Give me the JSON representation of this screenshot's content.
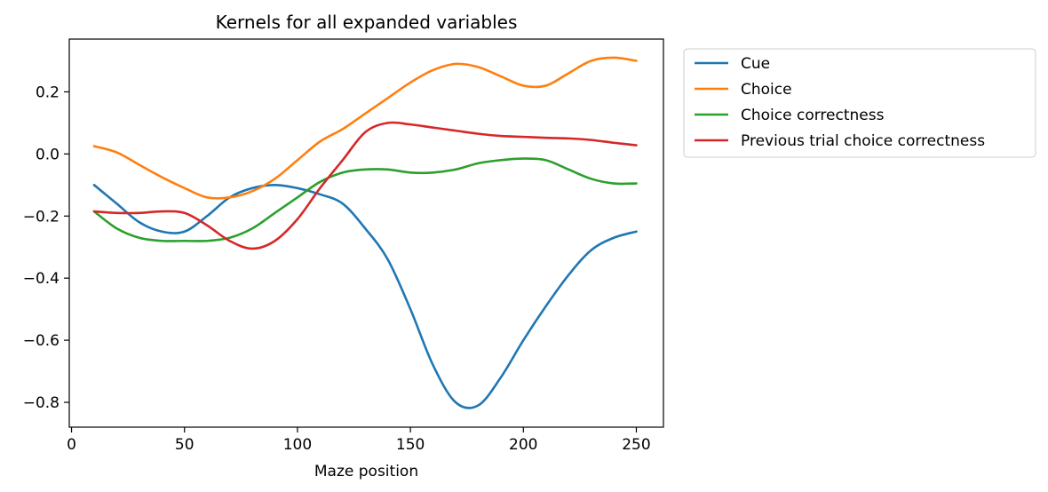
{
  "chart_data": {
    "type": "line",
    "title": "Kernels for all expanded variables",
    "xlabel": "Maze position",
    "ylabel": "",
    "xlim": [
      -1,
      262
    ],
    "ylim": [
      -0.88,
      0.37
    ],
    "xticks": [
      0,
      50,
      100,
      150,
      200,
      250
    ],
    "yticks": [
      0.2,
      0.0,
      -0.2,
      -0.4,
      -0.6,
      -0.8
    ],
    "ytick_labels": [
      "0.2",
      "0.0",
      "−0.2",
      "−0.4",
      "−0.6",
      "−0.8"
    ],
    "grid": false,
    "legend_position": "outside-top-right",
    "x": [
      10,
      20,
      30,
      40,
      50,
      60,
      70,
      80,
      90,
      100,
      110,
      120,
      130,
      140,
      150,
      160,
      170,
      180,
      190,
      200,
      210,
      220,
      230,
      240,
      250
    ],
    "series": [
      {
        "name": "Cue",
        "color": "#1f77b4",
        "values": [
          -0.1,
          -0.16,
          -0.22,
          -0.25,
          -0.25,
          -0.2,
          -0.14,
          -0.11,
          -0.1,
          -0.11,
          -0.13,
          -0.16,
          -0.24,
          -0.34,
          -0.5,
          -0.68,
          -0.8,
          -0.81,
          -0.72,
          -0.6,
          -0.49,
          -0.39,
          -0.31,
          -0.27,
          -0.25
        ]
      },
      {
        "name": "Choice",
        "color": "#ff7f0e",
        "values": [
          0.025,
          0.005,
          -0.035,
          -0.075,
          -0.11,
          -0.14,
          -0.14,
          -0.12,
          -0.08,
          -0.02,
          0.04,
          0.08,
          0.13,
          0.18,
          0.23,
          0.27,
          0.29,
          0.28,
          0.25,
          0.22,
          0.22,
          0.26,
          0.3,
          0.31,
          0.3
        ]
      },
      {
        "name": "Choice correctness",
        "color": "#2ca02c",
        "values": [
          -0.185,
          -0.24,
          -0.27,
          -0.28,
          -0.28,
          -0.28,
          -0.27,
          -0.24,
          -0.19,
          -0.14,
          -0.09,
          -0.06,
          -0.05,
          -0.05,
          -0.06,
          -0.06,
          -0.05,
          -0.03,
          -0.02,
          -0.015,
          -0.02,
          -0.05,
          -0.08,
          -0.095,
          -0.095
        ]
      },
      {
        "name": "Previous trial choice correctness",
        "color": "#d62728",
        "values": [
          -0.185,
          -0.19,
          -0.19,
          -0.185,
          -0.19,
          -0.23,
          -0.28,
          -0.305,
          -0.28,
          -0.21,
          -0.11,
          -0.02,
          0.07,
          0.1,
          0.095,
          0.085,
          0.075,
          0.065,
          0.058,
          0.055,
          0.052,
          0.05,
          0.045,
          0.036,
          0.028
        ]
      }
    ]
  }
}
